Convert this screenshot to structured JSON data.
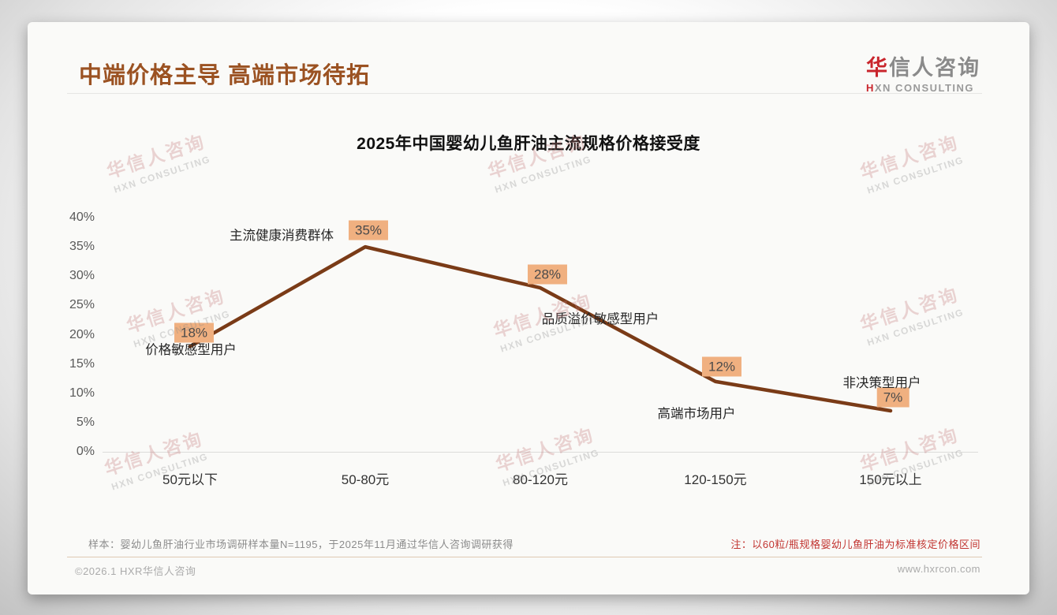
{
  "page": {
    "title": "中端价格主导 高端市场待拓",
    "logo": {
      "cn_first": "华",
      "cn_rest": "信人咨询",
      "en_first": "H",
      "en_rest": "XN CONSULTING"
    },
    "watermark": {
      "line1": "华信人咨询",
      "line2": "HXN CONSULTING"
    },
    "footer": {
      "sample_note": "样本：婴幼儿鱼肝油行业市场调研样本量N=1195，于2025年11月通过华信人咨询调研获得",
      "price_note": "注：以60粒/瓶规格婴幼儿鱼肝油为标准核定价格区间",
      "copyright": "©2026.1 HXR华信人咨询",
      "website": "www.hxrcon.com"
    }
  },
  "chart_data": {
    "type": "line",
    "title": "2025年中国婴幼儿鱼肝油主流规格价格接受度",
    "categories": [
      "50元以下",
      "50-80元",
      "80-120元",
      "120-150元",
      "150元以上"
    ],
    "values": [
      18,
      35,
      28,
      12,
      7
    ],
    "value_labels": [
      "18%",
      "35%",
      "28%",
      "12%",
      "7%"
    ],
    "annotations": [
      "价格敏感型用户",
      "主流健康消费群体",
      "品质溢价敏感型用户",
      "高端市场用户",
      "非决策型用户"
    ],
    "xlabel": "",
    "ylabel": "",
    "ylim": [
      0,
      40
    ],
    "ytick_labels": [
      "0%",
      "5%",
      "10%",
      "15%",
      "20%",
      "25%",
      "30%",
      "35%",
      "40%"
    ],
    "grid": false,
    "legend": null,
    "line_color": "#7a3b17",
    "badge_color": "#f0b080",
    "badge_text_color": "#4a4a4a"
  },
  "colors": {
    "title_brown": "#9b5222",
    "logo_red": "#c9252c",
    "note_red": "#c23531",
    "card_bg": "#fafaf8"
  }
}
